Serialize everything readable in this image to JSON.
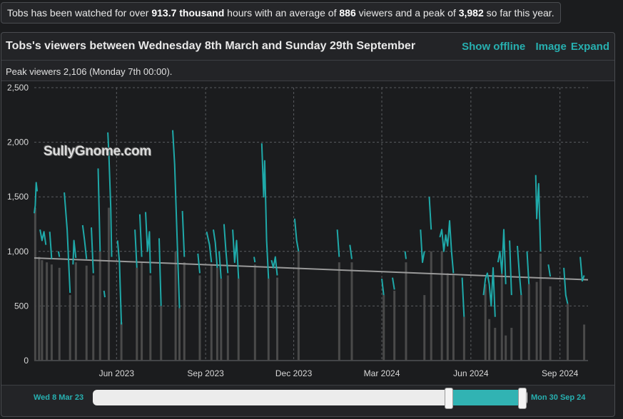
{
  "summary": {
    "p1": "Tobs has been watched for over ",
    "hours": "913.7 thousand",
    "p2": " hours with an average of ",
    "avg": "886",
    "p3": " viewers and a peak of ",
    "peak": "3,982",
    "p4": " so far this year."
  },
  "panel": {
    "title": "Tobs's viewers between Wednesday 8th March and Sunday 29th September",
    "show_offline": "Show offline",
    "image": "Image",
    "expand": "Expand",
    "peak_text": "Peak viewers 2,106 (Monday 7th 00:00).",
    "watermark": "SullyGnome.com"
  },
  "navigator": {
    "start_label": "Wed 8 Mar 23",
    "end_label": "Mon 30 Sep 24"
  },
  "chart_data": {
    "type": "line",
    "x_start": "2023-03-08",
    "x_end": "2024-09-30",
    "ylim": [
      0,
      2500
    ],
    "yticks": [
      0,
      500,
      1000,
      1500,
      2000,
      2500
    ],
    "ytick_labels": [
      "0",
      "500",
      "1,000",
      "1,500",
      "2,000",
      "2,500"
    ],
    "xticks": [
      "2023-06-01",
      "2023-09-01",
      "2023-12-01",
      "2024-03-01",
      "2024-06-01",
      "2024-09-01"
    ],
    "xtick_labels": [
      "Jun 2023",
      "Sep 2023",
      "Dec 2023",
      "Mar 2024",
      "Jun 2024",
      "Sep 2024"
    ],
    "grid": true,
    "colors": {
      "viewers": "#1fa9a9",
      "offline_bars": "#4a4a4a",
      "trend": "#9a9a9a"
    },
    "trend": [
      {
        "date": "2023-03-08",
        "value": 940
      },
      {
        "date": "2024-09-30",
        "value": 740
      }
    ],
    "series": [
      {
        "segments": [
          [
            [
              "2023-03-08",
              1350
            ],
            [
              "2023-03-09",
              1420
            ],
            [
              "2023-03-10",
              1630
            ],
            [
              "2023-03-11",
              1550
            ]
          ],
          [
            [
              "2023-03-14",
              1200
            ],
            [
              "2023-03-16",
              1100
            ],
            [
              "2023-03-18",
              1180
            ],
            [
              "2023-03-20",
              1060
            ]
          ],
          [
            [
              "2023-03-24",
              1180
            ],
            [
              "2023-03-26",
              930
            ]
          ],
          [
            [
              "2023-04-02",
              1000
            ],
            [
              "2023-04-03",
              950
            ]
          ],
          [
            [
              "2023-04-08",
              1540
            ],
            [
              "2023-04-11",
              1200
            ],
            [
              "2023-04-14",
              620
            ]
          ],
          [
            [
              "2023-04-17",
              880
            ],
            [
              "2023-04-18",
              1100
            ],
            [
              "2023-04-20",
              940
            ]
          ],
          [
            [
              "2023-04-27",
              1240
            ],
            [
              "2023-04-29",
              1100
            ],
            [
              "2023-05-01",
              930
            ]
          ],
          [
            [
              "2023-05-06",
              1220
            ],
            [
              "2023-05-08",
              800
            ]
          ],
          [
            [
              "2023-05-13",
              1760
            ],
            [
              "2023-05-15",
              1000
            ]
          ],
          [
            [
              "2023-05-19",
              640
            ],
            [
              "2023-05-20",
              580
            ]
          ],
          [
            [
              "2023-05-23",
              2090
            ],
            [
              "2023-05-24",
              1900
            ],
            [
              "2023-05-26",
              1400
            ],
            [
              "2023-05-27",
              950
            ]
          ],
          [
            [
              "2023-06-02",
              1100
            ],
            [
              "2023-06-04",
              900
            ],
            [
              "2023-06-06",
              330
            ]
          ],
          [
            [
              "2023-06-20",
              1200
            ],
            [
              "2023-06-22",
              850
            ]
          ],
          [
            [
              "2023-06-25",
              1340
            ],
            [
              "2023-06-27",
              950
            ]
          ],
          [
            [
              "2023-07-01",
              1360
            ],
            [
              "2023-07-03",
              1000
            ],
            [
              "2023-07-05",
              1180
            ],
            [
              "2023-07-06",
              800
            ]
          ],
          [
            [
              "2023-07-15",
              1120
            ],
            [
              "2023-07-17",
              500
            ]
          ],
          [
            [
              "2023-07-29",
              2110
            ],
            [
              "2023-07-31",
              1800
            ],
            [
              "2023-08-03",
              1000
            ],
            [
              "2023-08-05",
              480
            ]
          ],
          [
            [
              "2023-08-08",
              1370
            ],
            [
              "2023-08-10",
              950
            ]
          ],
          [
            [
              "2023-08-24",
              980
            ],
            [
              "2023-08-26",
              800
            ]
          ],
          [
            [
              "2023-09-02",
              1180
            ],
            [
              "2023-09-05",
              1060
            ],
            [
              "2023-09-07",
              900
            ]
          ],
          [
            [
              "2023-09-09",
              1200
            ],
            [
              "2023-09-11",
              1080
            ],
            [
              "2023-09-13",
              850
            ]
          ],
          [
            [
              "2023-09-15",
              1000
            ],
            [
              "2023-09-17",
              750
            ]
          ],
          [
            [
              "2023-09-20",
              1250
            ],
            [
              "2023-09-22",
              1000
            ],
            [
              "2023-09-24",
              800
            ]
          ],
          [
            [
              "2023-09-29",
              1200
            ],
            [
              "2023-10-01",
              900
            ],
            [
              "2023-10-03",
              1100
            ],
            [
              "2023-10-05",
              750
            ]
          ],
          [
            [
              "2023-10-21",
              950
            ],
            [
              "2023-10-22",
              900
            ]
          ],
          [
            [
              "2023-10-29",
              1990
            ],
            [
              "2023-10-31",
              1500
            ],
            [
              "2023-11-01",
              1830
            ],
            [
              "2023-11-03",
              1100
            ],
            [
              "2023-11-05",
              750
            ]
          ],
          [
            [
              "2023-11-08",
              920
            ],
            [
              "2023-11-10",
              850
            ],
            [
              "2023-11-12",
              950
            ],
            [
              "2023-11-14",
              780
            ]
          ],
          [
            [
              "2023-12-02",
              1300
            ],
            [
              "2023-12-04",
              1100
            ],
            [
              "2023-12-06",
              1000
            ]
          ],
          [
            [
              "2024-01-15",
              1200
            ],
            [
              "2024-01-17",
              950
            ]
          ],
          [
            [
              "2024-01-28",
              1060
            ],
            [
              "2024-01-30",
              930
            ]
          ],
          [
            [
              "2024-03-01",
              750
            ],
            [
              "2024-03-03",
              600
            ]
          ],
          [
            [
              "2024-03-12",
              760
            ],
            [
              "2024-03-14",
              650
            ]
          ],
          [
            [
              "2024-03-25",
              1000
            ],
            [
              "2024-03-26",
              930
            ]
          ],
          [
            [
              "2024-04-10",
              1200
            ],
            [
              "2024-04-12",
              900
            ],
            [
              "2024-04-14",
              1000
            ]
          ],
          [
            [
              "2024-04-19",
              1500
            ],
            [
              "2024-04-21",
              1200
            ]
          ],
          [
            [
              "2024-04-30",
              1130
            ],
            [
              "2024-05-02",
              1200
            ],
            [
              "2024-05-04",
              1000
            ],
            [
              "2024-05-06",
              1150
            ],
            [
              "2024-05-08",
              1050
            ],
            [
              "2024-05-10",
              1280
            ],
            [
              "2024-05-12",
              1000
            ],
            [
              "2024-05-14",
              800
            ]
          ],
          [
            [
              "2024-05-23",
              760
            ],
            [
              "2024-05-25",
              400
            ]
          ],
          [
            [
              "2024-06-14",
              600
            ],
            [
              "2024-06-16",
              750
            ],
            [
              "2024-06-18",
              800
            ],
            [
              "2024-06-20",
              700
            ],
            [
              "2024-06-22",
              500
            ],
            [
              "2024-06-24",
              850
            ],
            [
              "2024-06-26",
              400
            ]
          ],
          [
            [
              "2024-06-29",
              900
            ],
            [
              "2024-07-01",
              1000
            ],
            [
              "2024-07-03",
              800
            ],
            [
              "2024-07-05",
              1200
            ],
            [
              "2024-07-07",
              700
            ]
          ],
          [
            [
              "2024-07-11",
              1100
            ],
            [
              "2024-07-13",
              600
            ]
          ],
          [
            [
              "2024-07-19",
              1050
            ],
            [
              "2024-07-21",
              800
            ],
            [
              "2024-07-23",
              600
            ]
          ],
          [
            [
              "2024-07-29",
              1000
            ],
            [
              "2024-07-31",
              700
            ]
          ],
          [
            [
              "2024-08-07",
              1700
            ],
            [
              "2024-08-08",
              1300
            ],
            [
              "2024-08-10",
              1620
            ],
            [
              "2024-08-12",
              1000
            ]
          ],
          [
            [
              "2024-08-20",
              880
            ],
            [
              "2024-08-22",
              770
            ]
          ],
          [
            [
              "2024-09-05",
              850
            ],
            [
              "2024-09-07",
              600
            ],
            [
              "2024-09-09",
              520
            ]
          ],
          [
            [
              "2024-09-22",
              950
            ],
            [
              "2024-09-24",
              730
            ],
            [
              "2024-09-26",
              780
            ]
          ]
        ]
      }
    ],
    "offline_bars": [
      [
        "2023-03-09",
        1400
      ],
      [
        "2023-03-13",
        950
      ],
      [
        "2023-03-16",
        920
      ],
      [
        "2023-03-21",
        900
      ],
      [
        "2023-03-26",
        880
      ],
      [
        "2023-04-03",
        850
      ],
      [
        "2023-04-14",
        600
      ],
      [
        "2023-04-20",
        900
      ],
      [
        "2023-05-01",
        870
      ],
      [
        "2023-05-08",
        780
      ],
      [
        "2023-05-15",
        1000
      ],
      [
        "2023-05-24",
        1400
      ],
      [
        "2023-06-06",
        350
      ],
      [
        "2023-06-22",
        850
      ],
      [
        "2023-06-27",
        900
      ],
      [
        "2023-07-06",
        780
      ],
      [
        "2023-07-17",
        500
      ],
      [
        "2023-08-01",
        1000
      ],
      [
        "2023-08-05",
        480
      ],
      [
        "2023-08-10",
        900
      ],
      [
        "2023-08-26",
        780
      ],
      [
        "2023-09-07",
        880
      ],
      [
        "2023-09-13",
        850
      ],
      [
        "2023-09-17",
        750
      ],
      [
        "2023-09-24",
        780
      ],
      [
        "2023-10-05",
        750
      ],
      [
        "2023-10-22",
        880
      ],
      [
        "2023-11-05",
        750
      ],
      [
        "2023-11-14",
        760
      ],
      [
        "2023-12-06",
        1000
      ],
      [
        "2024-01-17",
        900
      ],
      [
        "2024-01-30",
        900
      ],
      [
        "2024-03-03",
        600
      ],
      [
        "2024-03-14",
        640
      ],
      [
        "2024-03-26",
        900
      ],
      [
        "2024-04-14",
        600
      ],
      [
        "2024-04-21",
        1000
      ],
      [
        "2024-05-02",
        1000
      ],
      [
        "2024-05-08",
        800
      ],
      [
        "2024-05-14",
        780
      ],
      [
        "2024-05-25",
        400
      ],
      [
        "2024-06-16",
        700
      ],
      [
        "2024-06-20",
        380
      ],
      [
        "2024-06-26",
        300
      ],
      [
        "2024-07-03",
        800
      ],
      [
        "2024-07-07",
        230
      ],
      [
        "2024-07-13",
        300
      ],
      [
        "2024-07-23",
        600
      ],
      [
        "2024-07-31",
        700
      ],
      [
        "2024-08-08",
        720
      ],
      [
        "2024-08-12",
        980
      ],
      [
        "2024-08-22",
        680
      ],
      [
        "2024-09-09",
        520
      ],
      [
        "2024-09-26",
        330
      ]
    ]
  }
}
